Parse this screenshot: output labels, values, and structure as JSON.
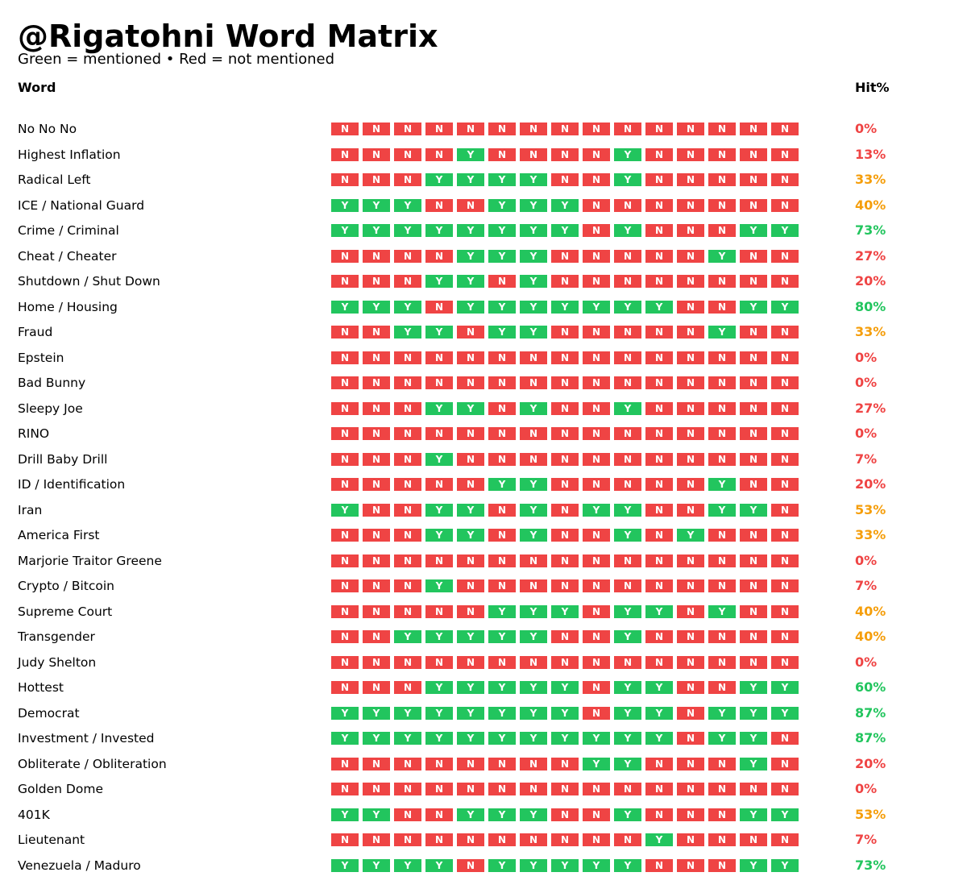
{
  "title": "@Rigatohni Word Matrix",
  "subtitle": "Green = mentioned • Red = not mentioned",
  "headers": {
    "word": "Word",
    "hit": "Hit%"
  },
  "colors": {
    "yes": "#22c55e",
    "no": "#ef4444",
    "mid": "#f59e0b"
  },
  "chart_data": {
    "type": "table",
    "title": "@Rigatohni Word Matrix",
    "subtitle": "Green = mentioned • Red = not mentioned",
    "columns": [
      "Word",
      "Hit%"
    ],
    "rows": [
      {
        "word": "No No No",
        "cells": "NNNNNNNNNNNNNNN",
        "hit": "0%"
      },
      {
        "word": "Highest Inflation",
        "cells": "NNNNYNNNNYNNNNN",
        "hit": "13%"
      },
      {
        "word": "Radical Left",
        "cells": "NNNYYYYNNYNNNNN",
        "hit": "33%"
      },
      {
        "word": "ICE / National Guard",
        "cells": "YYYNNYYYNNNNNNN",
        "hit": "40%"
      },
      {
        "word": "Crime / Criminal",
        "cells": "YYYYYYYYNYNNNYY",
        "hit": "73%"
      },
      {
        "word": "Cheat / Cheater",
        "cells": "NNNNYYYNNNNNYNN",
        "hit": "27%"
      },
      {
        "word": "Shutdown / Shut Down",
        "cells": "NNNYYNYNNNNNNNN",
        "hit": "20%"
      },
      {
        "word": "Home / Housing",
        "cells": "YYYNYYYYYYYNNYY",
        "hit": "80%"
      },
      {
        "word": "Fraud",
        "cells": "NNYYNYYNNNNNYNN",
        "hit": "33%"
      },
      {
        "word": "Epstein",
        "cells": "NNNNNNNNNNNNNNN",
        "hit": "0%"
      },
      {
        "word": "Bad Bunny",
        "cells": "NNNNNNNNNNNNNNN",
        "hit": "0%"
      },
      {
        "word": "Sleepy Joe",
        "cells": "NNNYYNYNNYNNNNN",
        "hit": "27%"
      },
      {
        "word": "RINO",
        "cells": "NNNNNNNNNNNNNNN",
        "hit": "0%"
      },
      {
        "word": "Drill Baby Drill",
        "cells": "NNNYNNNNNNNNNNN",
        "hit": "7%"
      },
      {
        "word": "ID / Identification",
        "cells": "NNNNNYYNNNNNYNN",
        "hit": "20%"
      },
      {
        "word": "Iran",
        "cells": "YNNYYNYNYYNNYYN",
        "hit": "53%"
      },
      {
        "word": "America First",
        "cells": "NNNYYNYNNYNYNNN",
        "hit": "33%"
      },
      {
        "word": "Marjorie Traitor Greene",
        "cells": "NNNNNNNNNNNNNNN",
        "hit": "0%"
      },
      {
        "word": "Crypto / Bitcoin",
        "cells": "NNNYNNNNNNNNNNN",
        "hit": "7%"
      },
      {
        "word": "Supreme Court",
        "cells": "NNNNNYYYNYYNYNN",
        "hit": "40%"
      },
      {
        "word": "Transgender",
        "cells": "NNYYYYYNNYNNNNN",
        "hit": "40%"
      },
      {
        "word": "Judy Shelton",
        "cells": "NNNNNNNNNNNNNNN",
        "hit": "0%"
      },
      {
        "word": "Hottest",
        "cells": "NNNYYYYYNYYNNYY",
        "hit": "60%"
      },
      {
        "word": "Democrat",
        "cells": "YYYYYYYYNYYNYYY",
        "hit": "87%"
      },
      {
        "word": "Investment / Invested",
        "cells": "YYYYYYYYYYYNYYN",
        "hit": "87%"
      },
      {
        "word": "Obliterate / Obliteration",
        "cells": "NNNNNNNNYYNNNYN",
        "hit": "20%"
      },
      {
        "word": "Golden Dome",
        "cells": "NNNNNNNNNNNNNNN",
        "hit": "0%"
      },
      {
        "word": "401K",
        "cells": "YYNNYYYNNYNNNYY",
        "hit": "53%"
      },
      {
        "word": "Lieutenant",
        "cells": "NNNNNNNNNNYNNNN",
        "hit": "7%"
      },
      {
        "word": "Venezuela / Maduro",
        "cells": "YYYYNYYYYYNNNYY",
        "hit": "73%"
      }
    ]
  }
}
